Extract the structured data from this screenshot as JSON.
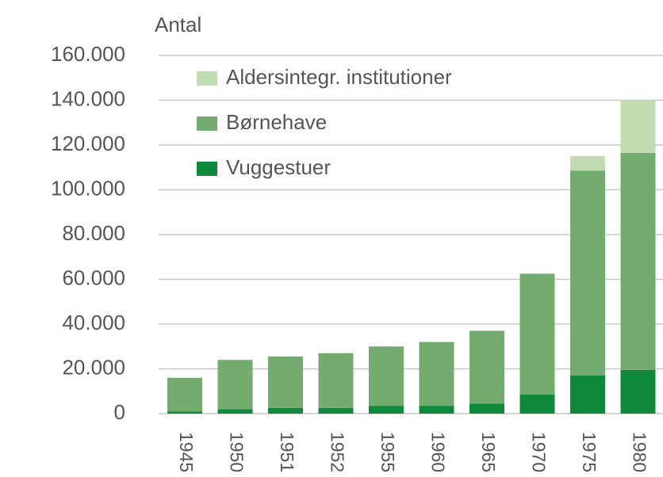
{
  "chart_data": {
    "type": "stacked_bar",
    "y_label": "Antal",
    "categories": [
      "1945",
      "1950",
      "1951",
      "1952",
      "1955",
      "1960",
      "1965",
      "1970",
      "1975",
      "1980"
    ],
    "series": [
      {
        "name": "Vuggestuer",
        "color": "#0f8a3c",
        "values": [
          1000,
          2000,
          2500,
          2500,
          3500,
          3500,
          4500,
          8500,
          17000,
          19500
        ]
      },
      {
        "name": "Børnehave",
        "color": "#74ab6e",
        "values": [
          15000,
          22000,
          23000,
          24500,
          26500,
          28500,
          32500,
          54000,
          91500,
          97000
        ]
      },
      {
        "name": "Aldersintegr. institutioner",
        "color": "#c2dcb2",
        "values": [
          null,
          null,
          null,
          null,
          null,
          null,
          null,
          null,
          6500,
          23500
        ]
      }
    ],
    "ylim": [
      0,
      160000
    ],
    "yticks": [
      {
        "value": 0,
        "label": "0"
      },
      {
        "value": 20000,
        "label": "20.000"
      },
      {
        "value": 40000,
        "label": "40.000"
      },
      {
        "value": 60000,
        "label": "60.000"
      },
      {
        "value": 80000,
        "label": "80.000"
      },
      {
        "value": 100000,
        "label": "100.000"
      },
      {
        "value": 120000,
        "label": "120.000"
      },
      {
        "value": 140000,
        "label": "140.000"
      },
      {
        "value": 160000,
        "label": "160.000"
      }
    ],
    "grid": true,
    "legend": "top-left"
  }
}
